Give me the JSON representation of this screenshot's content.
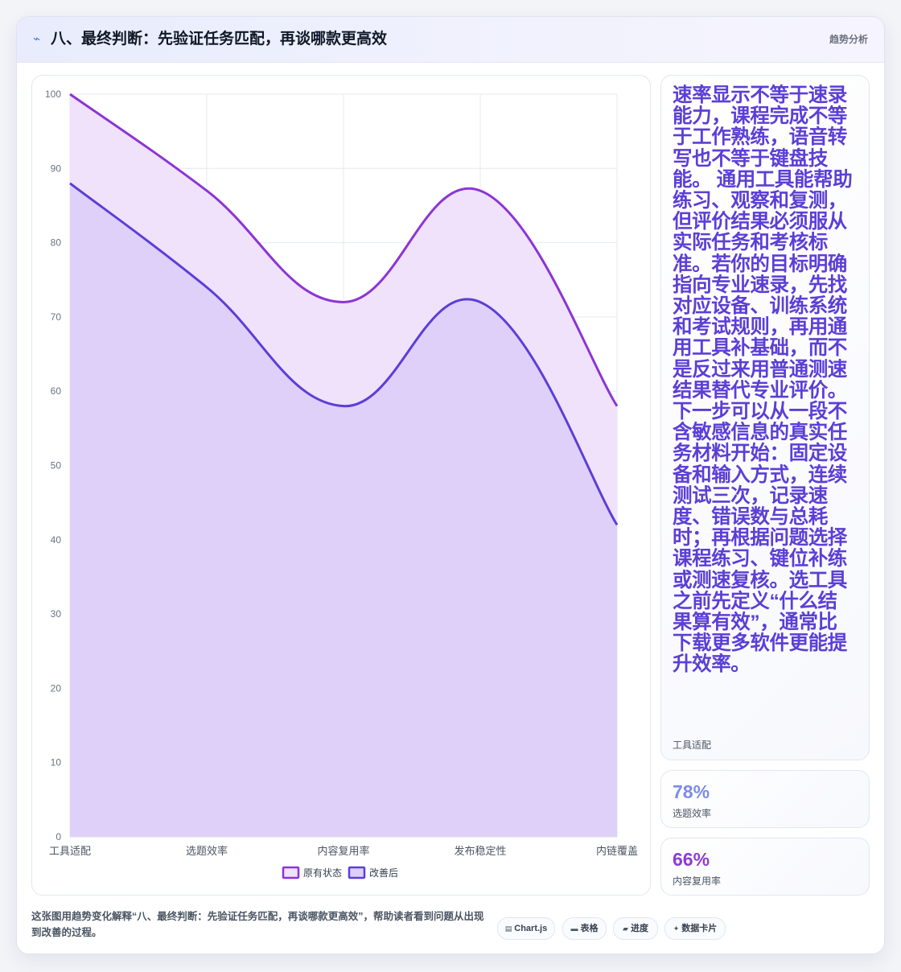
{
  "header": {
    "icon": "chart-trend-icon",
    "title": "八、最终判断：先验证任务匹配，再谈哪款更高效",
    "tag": "趋势分析"
  },
  "chart_data": {
    "type": "area",
    "categories": [
      "工具适配",
      "选题效率",
      "内容复用率",
      "发布稳定性",
      "内链覆盖"
    ],
    "series": [
      {
        "name": "原有状态",
        "values": [
          100,
          87,
          72,
          87,
          58
        ],
        "color": "#8b35d6",
        "fill": "#efe2fa"
      },
      {
        "name": "改善后",
        "values": [
          88,
          74,
          58,
          72,
          42
        ],
        "color": "#5b3fd6",
        "fill": "#dccff8"
      }
    ],
    "ylim": [
      0,
      100
    ],
    "yticks": [
      0,
      10,
      20,
      30,
      40,
      50,
      60,
      70,
      80,
      90,
      100
    ],
    "grid": true,
    "legend": "bottom"
  },
  "side": {
    "main_text": "速率显示不等于速录能力，课程完成不等于工作熟练，语音转写也不等于键盘技能。 通用工具能帮助练习、观察和复测，但评价结果必须服从实际任务和考核标准。若你的目标明确指向专业速录，先找对应设备、训练系统和考试规则，再用通用工具补基础，而不是反过来用普通测速结果替代专业评价。 下一步可以从一段不含敏感信息的真实任务材料开始：固定设备和输入方式，连续测试三次，记录速度、错误数与总耗时；再根据问题选择课程练习、键位补练或测速复核。选工具之前先定义“什么结果算有效”，通常比下载更多软件更能提升效率。",
    "main_label": "工具适配",
    "kpis": [
      {
        "value": "78%",
        "label": "选题效率"
      },
      {
        "value": "66%",
        "label": "内容复用率"
      }
    ]
  },
  "footer": {
    "description": "这张图用趋势变化解释“八、最终判断：先验证任务匹配，再谈哪款更高效”，帮助读者看到问题从出现到改善的过程。",
    "chips": [
      {
        "icon": "chart-icon",
        "label": "Chart.js"
      },
      {
        "icon": "table-icon",
        "label": "表格"
      },
      {
        "icon": "progress-icon",
        "label": "进度"
      },
      {
        "icon": "sparkle-icon",
        "label": "数据卡片"
      }
    ]
  }
}
